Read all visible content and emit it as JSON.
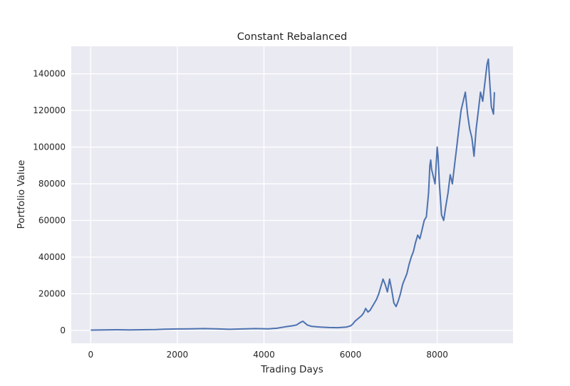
{
  "chart_data": {
    "type": "line",
    "title": "Constant Rebalanced",
    "xlabel": "Trading Days",
    "ylabel": "Portfolio Value",
    "xlim": [
      -450,
      9750
    ],
    "ylim": [
      -7000,
      155000
    ],
    "x_ticks": [
      0,
      2000,
      4000,
      6000,
      8000
    ],
    "x_tick_labels": [
      "0",
      "2000",
      "4000",
      "6000",
      "8000"
    ],
    "y_ticks": [
      0,
      20000,
      40000,
      60000,
      80000,
      100000,
      120000,
      140000
    ],
    "y_tick_labels": [
      "0",
      "20000",
      "40000",
      "60000",
      "80000",
      "100000",
      "120000",
      "140000"
    ],
    "grid": true,
    "legend": "none",
    "colors": {
      "background": "#eaeaf2",
      "grid": "#ffffff",
      "line": "#4c72b0",
      "text": "#262626"
    },
    "series": [
      {
        "x": [
          0,
          300,
          600,
          900,
          1200,
          1500,
          1700,
          2000,
          2300,
          2600,
          2900,
          3200,
          3500,
          3800,
          4100,
          4300,
          4500,
          4650,
          4750,
          4850,
          4900,
          4950,
          5000,
          5100,
          5300,
          5500,
          5700,
          5900,
          6000,
          6050,
          6100,
          6200,
          6250,
          6300,
          6350,
          6400,
          6450,
          6500,
          6550,
          6600,
          6650,
          6700,
          6750,
          6800,
          6850,
          6900,
          6950,
          7000,
          7050,
          7100,
          7150,
          7200,
          7250,
          7300,
          7350,
          7400,
          7450,
          7500,
          7550,
          7600,
          7650,
          7700,
          7750,
          7800,
          7830,
          7850,
          7870,
          7900,
          7950,
          8000,
          8020,
          8050,
          8080,
          8100,
          8150,
          8200,
          8250,
          8300,
          8350,
          8400,
          8450,
          8500,
          8550,
          8600,
          8650,
          8700,
          8750,
          8800,
          8850,
          8900,
          8950,
          9000,
          9050,
          9100,
          9150,
          9180,
          9200,
          9250,
          9300,
          9320
        ],
        "y": [
          200,
          300,
          400,
          300,
          400,
          500,
          700,
          800,
          900,
          1000,
          900,
          600,
          800,
          1000,
          900,
          1200,
          2000,
          2500,
          3000,
          4500,
          5000,
          4000,
          3000,
          2200,
          1800,
          1600,
          1500,
          1800,
          2500,
          3500,
          5000,
          7000,
          8000,
          9500,
          12000,
          10000,
          11000,
          13000,
          15000,
          17000,
          20000,
          24000,
          28000,
          25000,
          21000,
          28000,
          22000,
          15000,
          13000,
          16000,
          20000,
          25000,
          28000,
          31000,
          36000,
          40000,
          43000,
          48000,
          52000,
          50000,
          55000,
          60000,
          62000,
          75000,
          90000,
          93000,
          88000,
          85000,
          80000,
          100000,
          95000,
          80000,
          70000,
          63000,
          60000,
          68000,
          75000,
          85000,
          80000,
          90000,
          100000,
          110000,
          120000,
          125000,
          130000,
          118000,
          110000,
          105000,
          95000,
          110000,
          120000,
          130000,
          125000,
          135000,
          145000,
          148000,
          140000,
          122000,
          118000,
          130000
        ]
      }
    ]
  }
}
